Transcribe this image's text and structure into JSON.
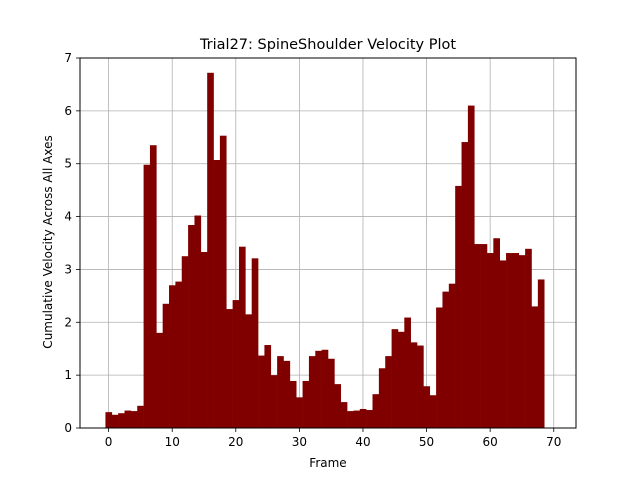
{
  "chart_data": {
    "type": "bar",
    "title": "Trial27: SpineShoulder Velocity Plot",
    "xlabel": "Frame",
    "ylabel": "Cumulative Velocity Across All Axes",
    "xlim": [
      -4.5,
      73.5
    ],
    "ylim": [
      0,
      7
    ],
    "xticks": [
      0,
      10,
      20,
      30,
      40,
      50,
      60,
      70
    ],
    "yticks": [
      0,
      1,
      2,
      3,
      4,
      5,
      6,
      7
    ],
    "grid": true,
    "bar_color": "#800000",
    "x": [
      0,
      1,
      2,
      3,
      4,
      5,
      6,
      7,
      8,
      9,
      10,
      11,
      12,
      13,
      14,
      15,
      16,
      17,
      18,
      19,
      20,
      21,
      22,
      23,
      24,
      25,
      26,
      27,
      28,
      29,
      30,
      31,
      32,
      33,
      34,
      35,
      36,
      37,
      38,
      39,
      40,
      41,
      42,
      43,
      44,
      45,
      46,
      47,
      48,
      49,
      50,
      51,
      52,
      53,
      54,
      55,
      56,
      57,
      58,
      59,
      60,
      61,
      62,
      63,
      64,
      65,
      66,
      67,
      68,
      69
    ],
    "values": [
      0.3,
      0.25,
      0.28,
      0.33,
      0.32,
      0.42,
      4.98,
      5.35,
      1.8,
      2.35,
      2.7,
      2.77,
      3.25,
      3.84,
      4.02,
      3.33,
      6.72,
      5.07,
      5.53,
      2.25,
      2.42,
      3.43,
      2.15,
      3.21,
      1.37,
      1.57,
      1.0,
      1.36,
      1.27,
      0.89,
      0.58,
      0.89,
      1.36,
      1.46,
      1.48,
      1.31,
      0.83,
      0.49,
      0.32,
      0.33,
      0.36,
      0.34,
      0.64,
      1.13,
      1.36,
      1.87,
      1.82,
      2.09,
      1.62,
      1.56,
      0.79,
      0.62,
      2.28,
      2.58,
      2.73,
      4.58,
      5.41,
      6.1,
      3.48,
      3.48,
      3.31,
      3.59,
      3.17,
      3.31,
      3.31,
      3.27,
      3.39,
      2.3,
      2.81,
      0.0
    ]
  }
}
